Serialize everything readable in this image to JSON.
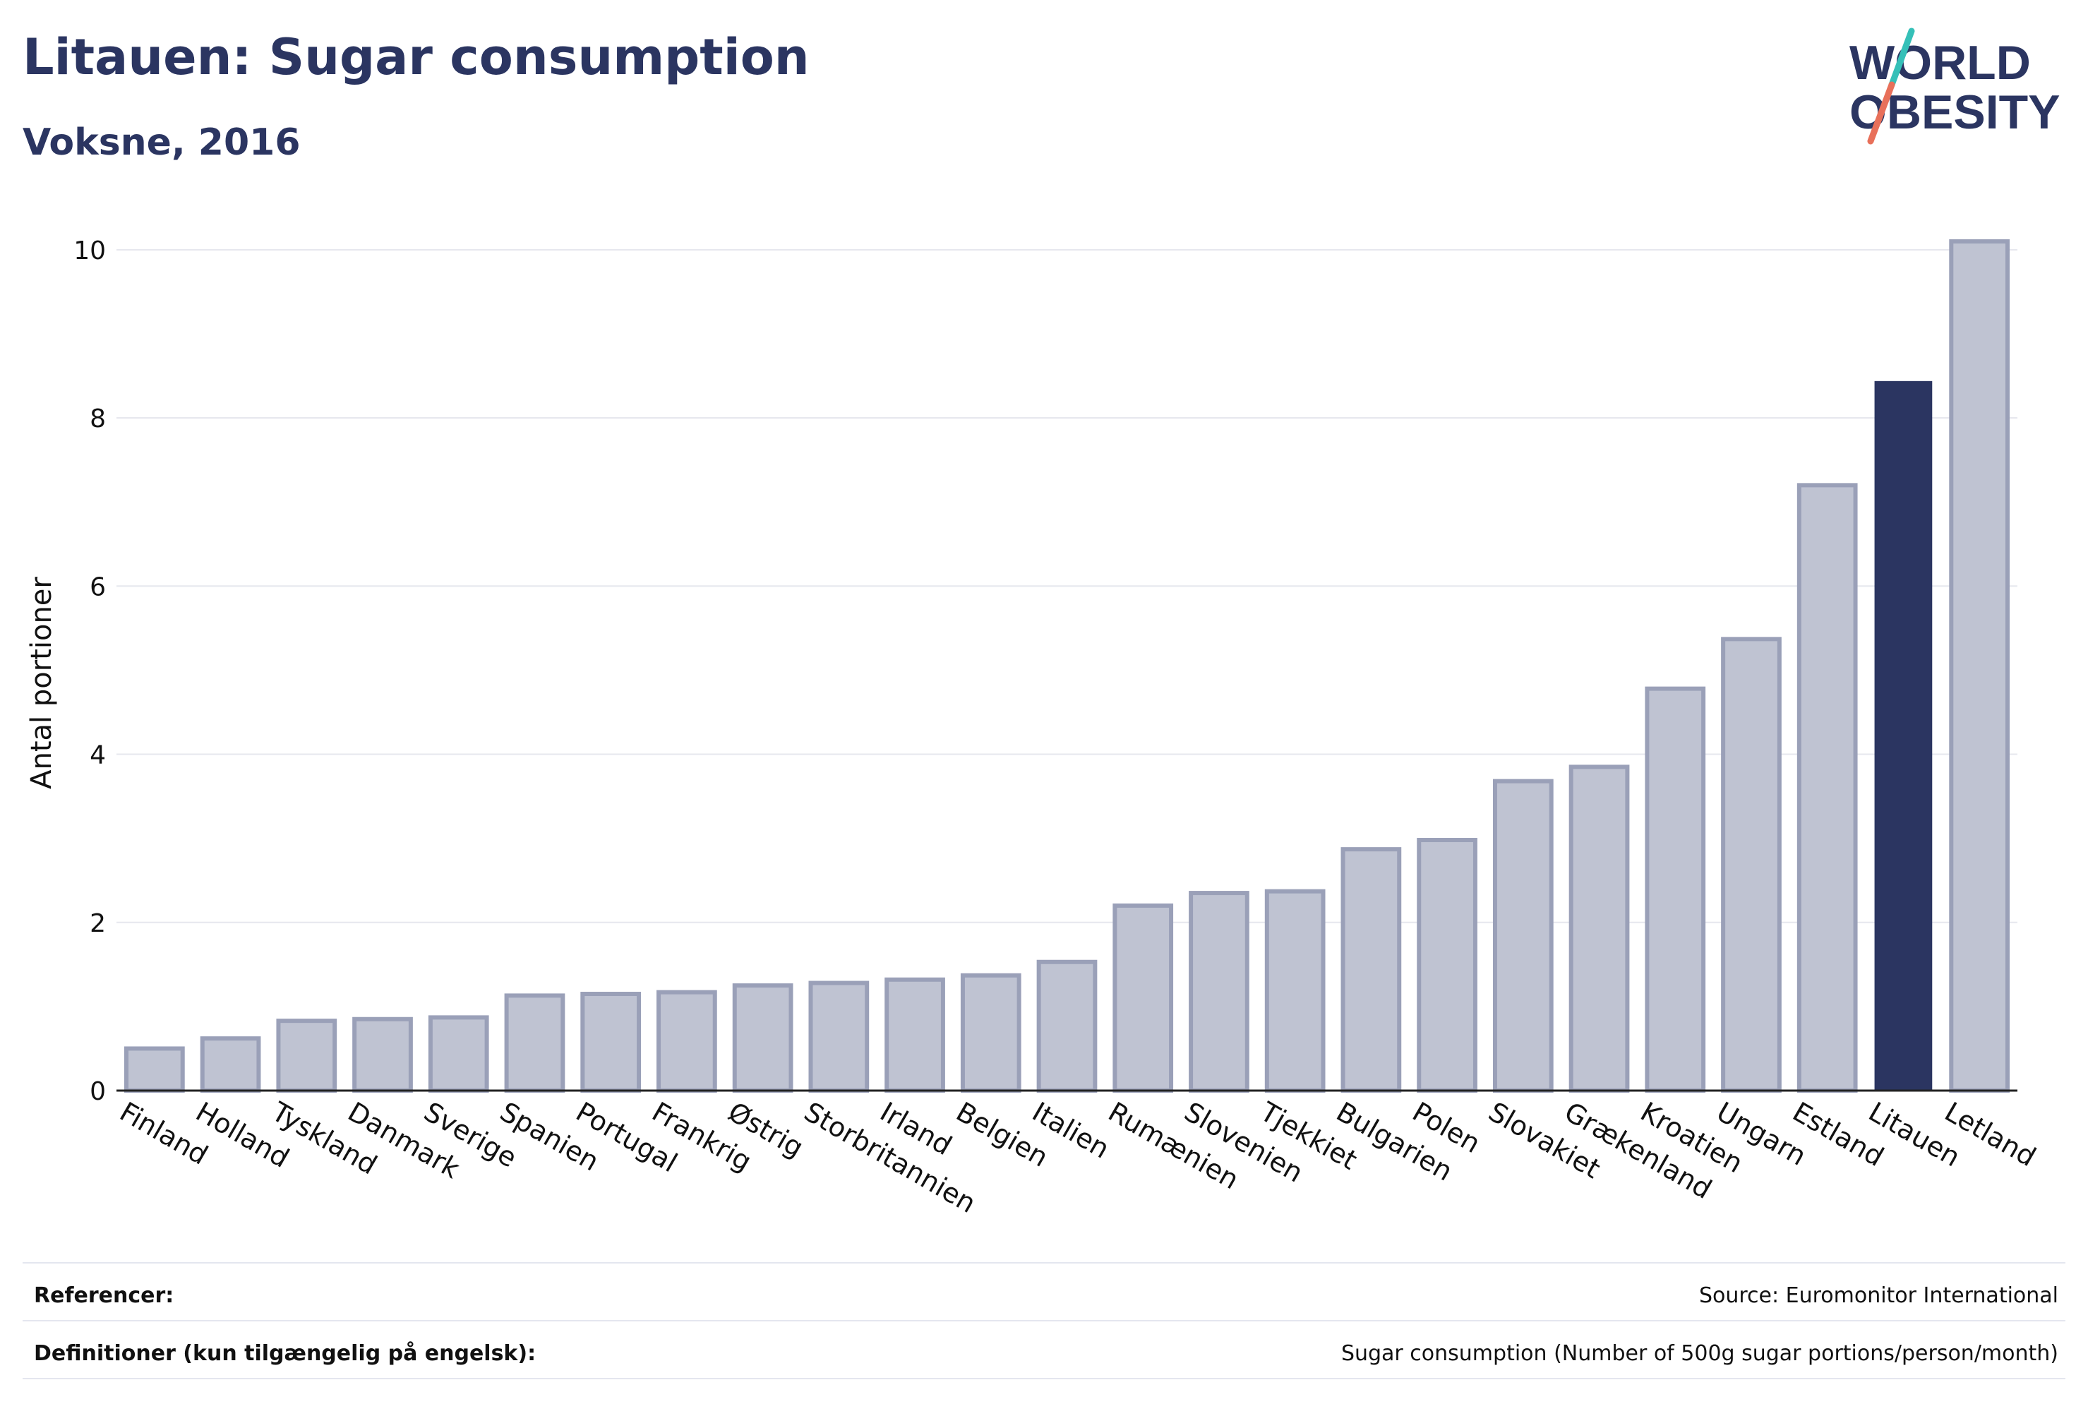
{
  "header": {
    "title": "Litauen: Sugar consumption",
    "subtitle": "Voksne, 2016"
  },
  "logo": {
    "line1": "WORLD",
    "line2": "OBESITY",
    "colors": {
      "text": "#2b3561",
      "teal": "#35c0b8",
      "coral": "#e8705a"
    }
  },
  "chart_data": {
    "type": "bar",
    "title": "Litauen: Sugar consumption",
    "subtitle": "Voksne, 2016",
    "xlabel": "",
    "ylabel": "Antal portioner",
    "ylim": [
      0,
      10.2
    ],
    "yticks": [
      0,
      2,
      4,
      6,
      8,
      10
    ],
    "grid": true,
    "highlight": "Litauen",
    "colors": {
      "highlight": "#2b3561",
      "bar_fill": "#bfc3d2",
      "bar_stroke": "#9aa0b8"
    },
    "categories": [
      "Finland",
      "Holland",
      "Tyskland",
      "Danmark",
      "Sverige",
      "Spanien",
      "Portugal",
      "Frankrig",
      "Østrig",
      "Storbritannien",
      "Irland",
      "Belgien",
      "Italien",
      "Rumænien",
      "Slovenien",
      "Tjekkiet",
      "Bulgarien",
      "Polen",
      "Slovakiet",
      "Grækenland",
      "Kroatien",
      "Ungarn",
      "Estland",
      "Litauen",
      "Letland"
    ],
    "values": [
      0.5,
      0.62,
      0.83,
      0.85,
      0.87,
      1.13,
      1.15,
      1.17,
      1.25,
      1.28,
      1.32,
      1.37,
      1.53,
      2.2,
      2.35,
      2.37,
      2.87,
      2.98,
      3.68,
      3.85,
      4.78,
      5.37,
      7.2,
      8.43,
      10.1
    ]
  },
  "footer": {
    "references_label": "Referencer:",
    "references_value": "Source: Euromonitor International",
    "definitions_label": "Definitioner (kun tilgængelig på engelsk):",
    "definitions_value": "Sugar consumption (Number of 500g sugar portions/person/month)"
  }
}
